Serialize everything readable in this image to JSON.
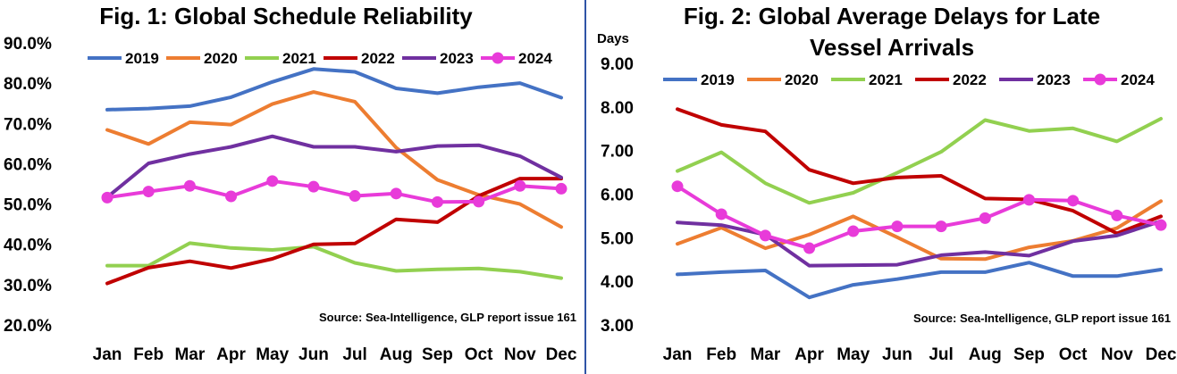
{
  "colors": {
    "2019": "#4472c4",
    "2020": "#ed7d31",
    "2021": "#92d050",
    "2022": "#c00000",
    "2023": "#7030a0",
    "2024": "#e83bd9"
  },
  "chart_data": [
    {
      "type": "line",
      "title": "Fig. 1: Global Schedule Reliability",
      "categories": [
        "Jan",
        "Feb",
        "Mar",
        "Apr",
        "May",
        "Jun",
        "Jul",
        "Aug",
        "Sep",
        "Oct",
        "Nov",
        "Dec"
      ],
      "ylim": [
        20,
        90
      ],
      "yticks": [
        "20.0%",
        "30.0%",
        "40.0%",
        "50.0%",
        "60.0%",
        "70.0%",
        "80.0%",
        "90.0%"
      ],
      "ylabel": "",
      "legend_position": "top",
      "source": "Source: Sea-Intelligence, GLP report issue 161",
      "series": [
        {
          "name": "2019",
          "values": [
            73.4,
            73.7,
            74.3,
            76.5,
            80.3,
            83.5,
            82.8,
            78.7,
            77.5,
            79.0,
            80.0,
            76.4
          ]
        },
        {
          "name": "2020",
          "values": [
            68.4,
            64.9,
            70.3,
            69.7,
            74.8,
            77.8,
            75.4,
            64.0,
            56.0,
            52.3,
            50.0,
            44.3
          ]
        },
        {
          "name": "2021",
          "values": [
            34.7,
            34.7,
            40.3,
            39.1,
            38.6,
            39.4,
            35.4,
            33.4,
            33.8,
            34.0,
            33.2,
            31.6
          ]
        },
        {
          "name": "2022",
          "values": [
            30.3,
            34.2,
            35.8,
            34.1,
            36.4,
            40.0,
            40.2,
            46.2,
            45.5,
            52.0,
            56.3,
            56.3
          ]
        },
        {
          "name": "2023",
          "values": [
            51.7,
            60.1,
            62.4,
            64.2,
            66.8,
            64.2,
            64.2,
            63.0,
            64.4,
            64.6,
            61.9,
            56.6
          ]
        },
        {
          "name": "2024",
          "values": [
            51.6,
            53.1,
            54.5,
            51.9,
            55.7,
            54.3,
            52.0,
            52.6,
            50.5,
            50.6,
            54.5,
            53.8
          ]
        }
      ]
    },
    {
      "type": "line",
      "title_lines": [
        "Fig. 2: Global Average Delays for Late",
        "Vessel Arrivals"
      ],
      "categories": [
        "Jan",
        "Feb",
        "Mar",
        "Apr",
        "May",
        "Jun",
        "Jul",
        "Aug",
        "Sep",
        "Oct",
        "Nov",
        "Dec"
      ],
      "ylim": [
        3,
        9
      ],
      "yticks": [
        "3.00",
        "4.00",
        "5.00",
        "6.00",
        "7.00",
        "8.00",
        "9.00"
      ],
      "ylabel": "Days",
      "legend_position": "top",
      "source": "Source: Sea-Intelligence, GLP report issue 161",
      "series": [
        {
          "name": "2019",
          "values": [
            4.16,
            4.21,
            4.25,
            3.63,
            3.92,
            4.05,
            4.21,
            4.21,
            4.43,
            4.12,
            4.12,
            4.27
          ]
        },
        {
          "name": "2020",
          "values": [
            4.86,
            5.23,
            4.76,
            5.07,
            5.49,
            5.01,
            4.52,
            4.51,
            4.78,
            4.93,
            5.22,
            5.84
          ]
        },
        {
          "name": "2021",
          "values": [
            6.53,
            6.96,
            6.25,
            5.8,
            6.03,
            6.49,
            6.97,
            7.7,
            7.45,
            7.51,
            7.21,
            7.73
          ]
        },
        {
          "name": "2022",
          "values": [
            7.95,
            7.59,
            7.44,
            6.56,
            6.25,
            6.38,
            6.42,
            5.9,
            5.88,
            5.62,
            5.1,
            5.49
          ]
        },
        {
          "name": "2023",
          "values": [
            5.35,
            5.29,
            5.07,
            4.36,
            4.37,
            4.38,
            4.6,
            4.67,
            4.59,
            4.92,
            5.05,
            5.38
          ]
        },
        {
          "name": "2024",
          "values": [
            6.18,
            5.54,
            5.05,
            4.76,
            5.15,
            5.26,
            5.26,
            5.45,
            5.87,
            5.85,
            5.51,
            5.29
          ]
        }
      ]
    }
  ]
}
